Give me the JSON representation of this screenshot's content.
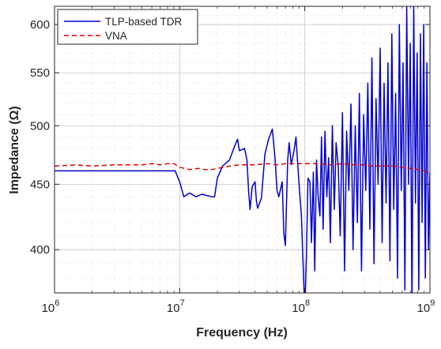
{
  "chart_data": {
    "type": "line",
    "xlabel": "Frequency (Hz)",
    "ylabel": "Impedance  (Ω)",
    "xscale": "log",
    "yscale": "log",
    "xlim": [
      1000000,
      1000000000
    ],
    "ylim": [
      370,
      620
    ],
    "x_ticks": [
      1000000,
      10000000,
      100000000,
      1000000000
    ],
    "x_tick_labels": [
      {
        "base": "10",
        "exp": "6"
      },
      {
        "base": "10",
        "exp": "7"
      },
      {
        "base": "10",
        "exp": "8"
      },
      {
        "base": "10",
        "exp": "9"
      }
    ],
    "y_ticks": [
      400,
      450,
      500,
      550,
      600
    ],
    "y_tick_labels": [
      "400",
      "450",
      "500",
      "550",
      "600"
    ],
    "grid": true,
    "legend_position": "top-left",
    "series": [
      {
        "name": "TLP-based TDR",
        "color": "#0000d0",
        "style": "solid",
        "x": [
          1000000,
          2000000,
          5000000,
          9200000,
          10000000,
          10800000,
          12000000,
          13500000,
          15000000,
          18000000,
          19000000,
          20000000,
          22000000,
          25000000,
          27500000,
          29000000,
          30000000,
          33000000,
          34500000,
          35500000,
          36500000,
          38000000,
          40000000,
          41000000,
          42000000,
          45000000,
          48000000,
          51000000,
          55000000,
          58000000,
          60000000,
          62000000,
          66000000,
          68000000,
          70000000,
          73000000,
          75000000,
          78000000,
          82000000,
          85000000,
          90000000,
          94000000,
          98000000,
          100000000,
          103000000,
          106000000,
          110000000,
          113000000,
          117000000,
          120000000,
          124000000,
          128000000,
          132000000,
          136000000,
          140000000,
          145000000,
          150000000,
          155000000,
          160000000,
          166000000,
          172000000,
          178000000,
          185000000,
          192000000,
          200000000,
          208000000,
          216000000,
          225000000,
          234000000,
          243000000,
          253000000,
          263000000,
          273000000,
          284000000,
          295000000,
          307000000,
          319000000,
          331000000,
          344000000,
          357000000,
          371000000,
          385000000,
          400000000,
          415000000,
          430000000,
          446000000,
          462000000,
          479000000,
          496000000,
          514000000,
          532000000,
          551000000,
          570000000,
          590000000,
          610000000,
          631000000,
          652000000,
          674000000,
          696000000,
          719000000,
          742000000,
          766000000,
          790000000,
          815000000,
          840000000,
          866000000,
          892000000,
          919000000,
          946000000,
          973000000,
          1000000000
        ],
        "y": [
          461,
          461,
          461,
          461,
          452,
          440,
          443,
          440,
          442,
          440,
          440,
          455,
          465,
          470,
          482,
          488,
          478,
          480,
          470,
          445,
          430,
          448,
          452,
          437,
          431,
          439,
          475,
          487,
          497,
          470,
          445,
          440,
          452,
          412,
          403,
          470,
          485,
          466,
          478,
          490,
          450,
          425,
          378,
          358,
          395,
          455,
          452,
          405,
          460,
          385,
          470,
          440,
          425,
          490,
          415,
          495,
          440,
          472,
          405,
          500,
          430,
          485,
          465,
          410,
          512,
          385,
          495,
          445,
          520,
          400,
          500,
          420,
          530,
          385,
          510,
          445,
          540,
          415,
          565,
          390,
          525,
          450,
          575,
          405,
          540,
          435,
          560,
          392,
          590,
          430,
          530,
          380,
          600,
          445,
          560,
          372,
          620,
          450,
          580,
          360,
          620,
          435,
          570,
          372,
          590,
          420,
          600,
          380,
          560,
          400,
          460
        ]
      },
      {
        "name": "VNA",
        "color": "#e00000",
        "style": "dashed",
        "x": [
          1000000,
          1500000,
          2000000,
          3000000,
          4000000,
          5000000,
          6000000,
          7000000,
          8000000,
          9000000,
          10000000,
          12000000,
          14000000,
          16000000,
          18000000,
          20000000,
          25000000,
          30000000,
          40000000,
          50000000,
          60000000,
          70000000,
          80000000,
          100000000,
          130000000,
          160000000,
          200000000,
          250000000,
          300000000,
          350000000,
          400000000,
          500000000,
          600000000,
          700000000,
          800000000,
          900000000,
          1000000000
        ],
        "y": [
          465,
          466,
          465,
          466,
          466,
          466,
          467,
          466,
          467,
          467,
          464,
          462,
          463,
          462,
          462,
          463,
          465,
          466,
          466,
          467,
          466,
          467,
          467,
          467,
          467,
          466,
          467,
          466,
          466,
          465,
          465,
          465,
          464,
          463,
          462,
          461,
          458
        ]
      }
    ]
  }
}
